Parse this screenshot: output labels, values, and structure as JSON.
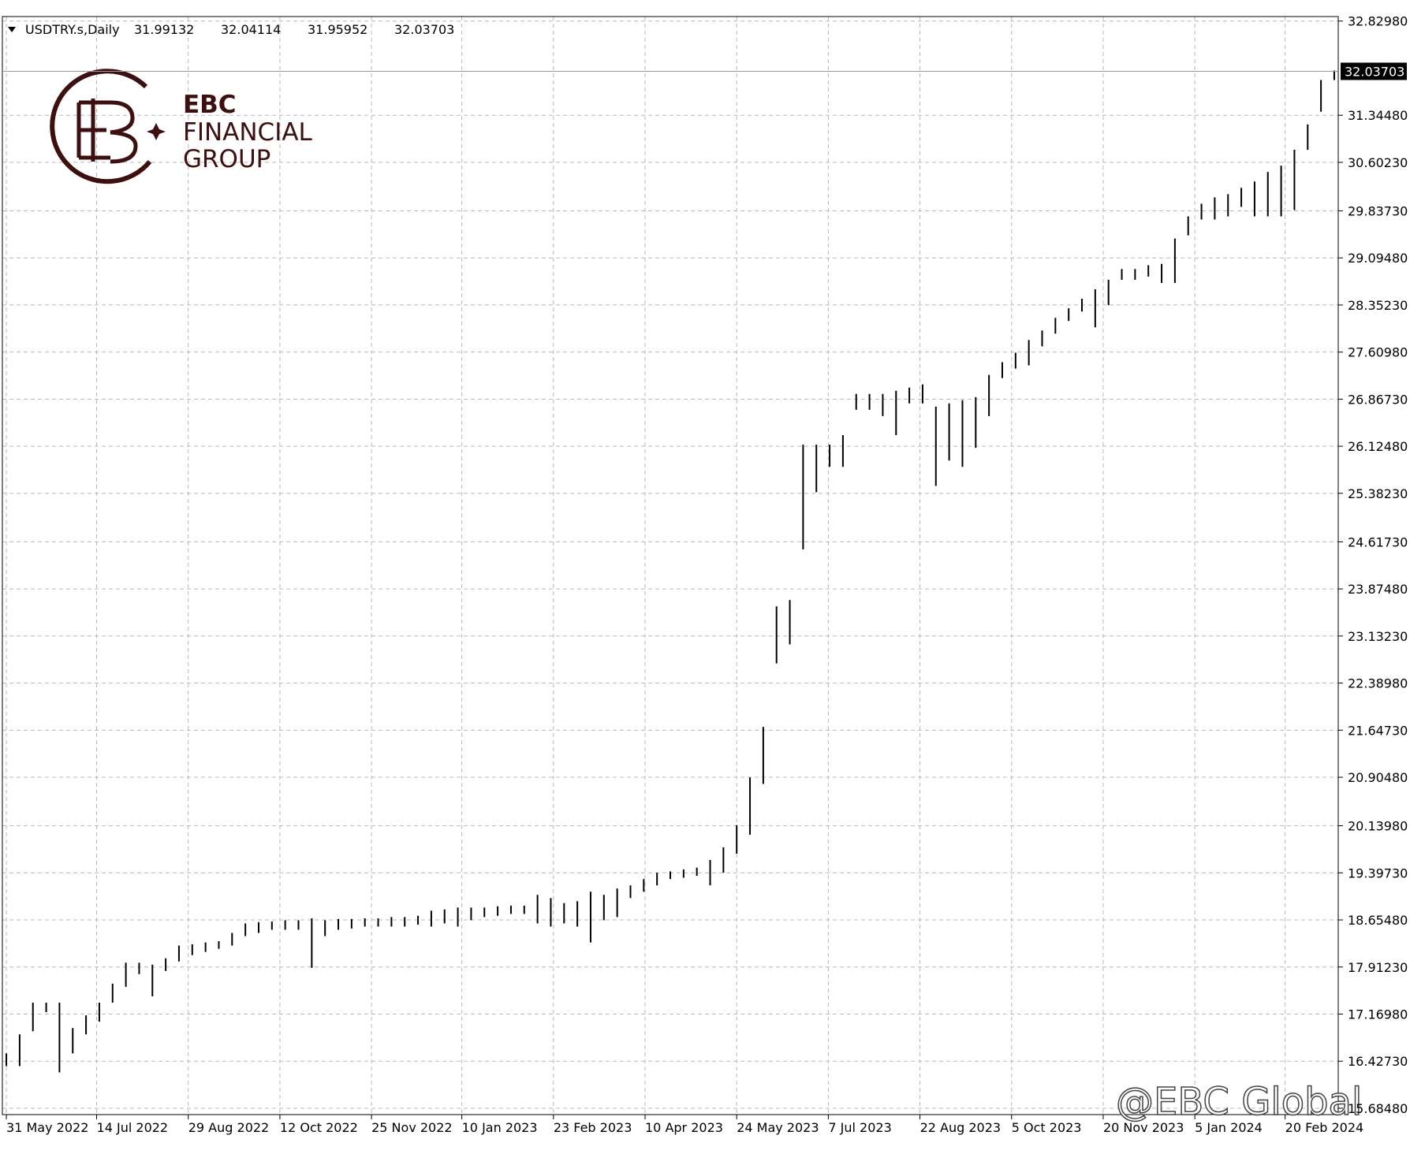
{
  "chart_data": {
    "type": "ohlc",
    "symbol": "USDTRY.s,Daily",
    "ohlc": [
      31.99132,
      32.04114,
      31.95952,
      32.03703
    ],
    "color": "#000000",
    "grid": true,
    "ylim": [
      15.585,
      32.901
    ],
    "yticks": [
      {
        "value": 32.8298,
        "label": "32.82980"
      },
      {
        "value": 31.3448,
        "label": "31.34480"
      },
      {
        "value": 30.6023,
        "label": "30.60230"
      },
      {
        "value": 29.8373,
        "label": "29.83730"
      },
      {
        "value": 29.0948,
        "label": "29.09480"
      },
      {
        "value": 28.3523,
        "label": "28.35230"
      },
      {
        "value": 27.6098,
        "label": "27.60980"
      },
      {
        "value": 26.8673,
        "label": "26.86730"
      },
      {
        "value": 26.1248,
        "label": "26.12480"
      },
      {
        "value": 25.3823,
        "label": "25.38230"
      },
      {
        "value": 24.6173,
        "label": "24.61730"
      },
      {
        "value": 23.8748,
        "label": "23.87480"
      },
      {
        "value": 23.1323,
        "label": "23.13230"
      },
      {
        "value": 22.3898,
        "label": "22.38980"
      },
      {
        "value": 21.6473,
        "label": "21.64730"
      },
      {
        "value": 20.9048,
        "label": "20.90480"
      },
      {
        "value": 20.1398,
        "label": "20.13980"
      },
      {
        "value": 19.3973,
        "label": "19.39730"
      },
      {
        "value": 18.6548,
        "label": "18.65480"
      },
      {
        "value": 17.9123,
        "label": "17.91230"
      },
      {
        "value": 17.1698,
        "label": "17.16980"
      },
      {
        "value": 16.4273,
        "label": "16.42730"
      },
      {
        "value": 15.6848,
        "label": "15.68480"
      }
    ],
    "xlim": [
      -0.3,
      100.3
    ],
    "xticks": [
      {
        "value": 0,
        "label": "31 May 2022"
      },
      {
        "value": 6.8,
        "label": "14 Jul 2022"
      },
      {
        "value": 13.7,
        "label": "29 Aug 2022"
      },
      {
        "value": 20.6,
        "label": "12 Oct 2022"
      },
      {
        "value": 27.5,
        "label": "25 Nov 2022"
      },
      {
        "value": 34.3,
        "label": "10 Jan 2023"
      },
      {
        "value": 41.2,
        "label": "23 Feb 2023"
      },
      {
        "value": 48.1,
        "label": "10 Apr 2023"
      },
      {
        "value": 55,
        "label": "24 May 2023"
      },
      {
        "value": 61.9,
        "label": "7 Jul 2023"
      },
      {
        "value": 68.8,
        "label": "22 Aug 2023"
      },
      {
        "value": 75.7,
        "label": "5 Oct 2023"
      },
      {
        "value": 82.6,
        "label": "20 Nov 2023"
      },
      {
        "value": 89.5,
        "label": "5 Jan 2024"
      },
      {
        "value": 96.3,
        "label": "20 Feb 2024"
      }
    ],
    "high": [
      16.55,
      16.85,
      17.35,
      17.35,
      17.35,
      16.95,
      17.15,
      17.35,
      17.65,
      17.98,
      17.98,
      17.95,
      18.05,
      18.25,
      18.27,
      18.3,
      18.32,
      18.45,
      18.6,
      18.62,
      18.63,
      18.65,
      18.65,
      18.68,
      18.65,
      18.67,
      18.67,
      18.68,
      18.68,
      18.7,
      18.7,
      18.72,
      18.8,
      18.82,
      18.85,
      18.85,
      18.85,
      18.87,
      18.88,
      18.88,
      19.05,
      19.0,
      18.92,
      18.95,
      19.1,
      19.05,
      19.15,
      19.2,
      19.3,
      19.4,
      19.42,
      19.45,
      19.48,
      19.6,
      19.8,
      20.15,
      20.9,
      21.7,
      23.6,
      23.7,
      26.15,
      26.15,
      26.15,
      26.3,
      26.95,
      26.95,
      26.95,
      27.0,
      27.05,
      27.1,
      26.75,
      26.8,
      26.85,
      26.9,
      27.25,
      27.45,
      27.6,
      27.8,
      27.95,
      28.15,
      28.3,
      28.45,
      28.6,
      28.75,
      28.92,
      28.92,
      28.98,
      29.0,
      29.4,
      29.75,
      29.95,
      30.05,
      30.1,
      30.2,
      30.3,
      30.45,
      30.55,
      30.8,
      31.2,
      31.9,
      32.05
    ],
    "low": [
      16.35,
      16.35,
      16.9,
      17.2,
      16.25,
      16.55,
      16.85,
      17.05,
      17.35,
      17.6,
      17.8,
      17.45,
      17.85,
      18.0,
      18.1,
      18.15,
      18.2,
      18.25,
      18.4,
      18.45,
      18.5,
      18.5,
      18.5,
      17.9,
      18.4,
      18.5,
      18.52,
      18.55,
      18.55,
      18.55,
      18.55,
      18.58,
      18.55,
      18.6,
      18.55,
      18.65,
      18.7,
      18.72,
      18.75,
      18.75,
      18.6,
      18.55,
      18.6,
      18.55,
      18.3,
      18.65,
      18.7,
      19.0,
      19.1,
      19.2,
      19.3,
      19.32,
      19.35,
      19.2,
      19.4,
      19.7,
      20.0,
      20.8,
      22.7,
      23.0,
      24.5,
      25.4,
      25.8,
      25.8,
      26.7,
      26.7,
      26.6,
      26.3,
      26.8,
      26.8,
      25.5,
      25.9,
      25.8,
      26.1,
      26.6,
      27.2,
      27.35,
      27.4,
      27.7,
      27.9,
      28.1,
      28.25,
      28.0,
      28.35,
      28.75,
      28.75,
      28.8,
      28.7,
      28.7,
      29.45,
      29.7,
      29.7,
      29.75,
      29.9,
      29.75,
      29.75,
      29.75,
      29.85,
      30.8,
      31.4,
      31.9
    ]
  },
  "logo": {
    "name": "EBC",
    "line2": "FINANCIAL",
    "line3": "GROUP"
  },
  "watermark": "@EBC Global"
}
